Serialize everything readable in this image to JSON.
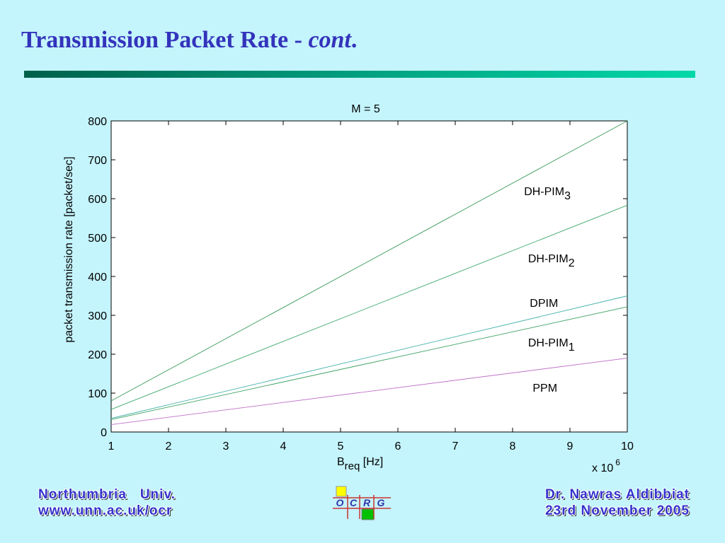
{
  "slide": {
    "title_main": "Transmission Packet Rate - ",
    "title_italic": "cont",
    "title_end": "."
  },
  "footer": {
    "left_line1": "Northumbria   Univ.",
    "left_line2": "www.unn.ac.uk/ocr",
    "right_line1": "Dr. Nawras Aldibbiat",
    "right_line2": "23rd November 2005",
    "logo_letters": [
      "O",
      "C",
      "R",
      "G"
    ],
    "logo_colors": {
      "yellow": "#ffff00",
      "green": "#00c000",
      "line": "#cc3333",
      "text": "#3333aa"
    }
  },
  "chart_data": {
    "type": "line",
    "title": "M = 5",
    "xlabel_main": "B",
    "xlabel_sub": "req",
    "xlabel_unit": " [Hz]",
    "ylabel": "packet transmission rate [packet/sec]",
    "x_multiplier_base": "x 10",
    "x_multiplier_exp": "6",
    "xlim": [
      1,
      10
    ],
    "ylim": [
      0,
      800
    ],
    "xticks": [
      1,
      2,
      3,
      4,
      5,
      6,
      7,
      8,
      9,
      10
    ],
    "yticks": [
      0,
      100,
      200,
      300,
      400,
      500,
      600,
      700,
      800
    ],
    "grid": false,
    "series": [
      {
        "name": "DH-PIM",
        "sub": "3",
        "x": [
          1,
          10
        ],
        "y": [
          80,
          800
        ],
        "color": "#3a9a5a",
        "label_at": [
          8.2,
          270
        ]
      },
      {
        "name": "DH-PIM",
        "sub": "2",
        "x": [
          1,
          10
        ],
        "y": [
          58,
          583
        ],
        "color": "#3aa86a",
        "label_at": [
          8.27,
          365
        ]
      },
      {
        "name": "DPIM",
        "sub": "",
        "x": [
          1,
          10
        ],
        "y": [
          35,
          350
        ],
        "color": "#40b0a8",
        "label_at": [
          8.3,
          428
        ]
      },
      {
        "name": "DH-PIM",
        "sub": "1",
        "x": [
          1,
          10
        ],
        "y": [
          32,
          322
        ],
        "color": "#3aa060",
        "label_at": [
          8.27,
          484
        ]
      },
      {
        "name": "PPM",
        "sub": "",
        "x": [
          1,
          10
        ],
        "y": [
          19,
          190
        ],
        "color": "#c070c8",
        "label_at": [
          8.35,
          548
        ]
      }
    ],
    "colors": {
      "axis": "#000000",
      "plot_bg": "#ffffff"
    }
  }
}
